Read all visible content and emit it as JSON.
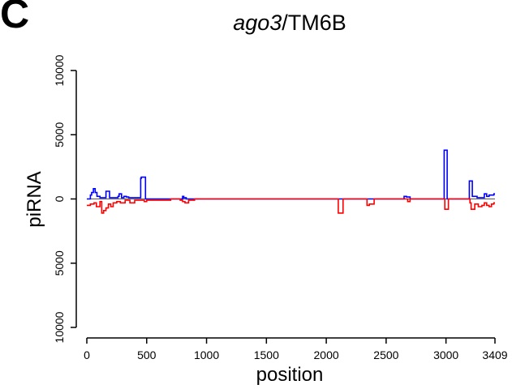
{
  "panel_letter": "C",
  "title_italic": "ago3",
  "title_rest": "/TM6B",
  "chart_data": {
    "type": "line",
    "title": "ago3/TM6B",
    "xlabel": "position",
    "ylabel": "piRNA",
    "xlim": [
      0,
      3409
    ],
    "ylim": [
      -10000,
      10000
    ],
    "x_ticks": [
      0,
      500,
      1000,
      1500,
      2000,
      2500,
      3000,
      3409
    ],
    "x_tick_labels": [
      "0",
      "500",
      "1000",
      "1500",
      "2000",
      "2500",
      "3000",
      "3409"
    ],
    "y_ticks": [
      10000,
      5000,
      0,
      -5000,
      -10000
    ],
    "y_tick_labels": [
      "10000",
      "5000",
      "0",
      "5000",
      "10000"
    ],
    "grid": false,
    "legend": "none",
    "series": [
      {
        "color": "#0000ff",
        "x": [
          0,
          30,
          40,
          55,
          70,
          85,
          110,
          150,
          160,
          175,
          190,
          220,
          260,
          270,
          290,
          310,
          330,
          350,
          380,
          420,
          450,
          455,
          480,
          490,
          520,
          600,
          700,
          780,
          800,
          810,
          830,
          900,
          1000,
          1200,
          1400,
          1600,
          1700,
          1900,
          2000,
          2100,
          2200,
          2300,
          2400,
          2500,
          2600,
          2650,
          2670,
          2700,
          2800,
          2900,
          2980,
          2985,
          3000,
          3010,
          3100,
          3190,
          3195,
          3215,
          3220,
          3260,
          3300,
          3320,
          3340,
          3360,
          3400,
          3409
        ],
        "y": [
          0,
          300,
          500,
          800,
          500,
          200,
          100,
          100,
          600,
          600,
          100,
          100,
          200,
          400,
          100,
          200,
          150,
          100,
          100,
          100,
          1600,
          1700,
          1700,
          0,
          0,
          0,
          0,
          0,
          200,
          100,
          0,
          0,
          0,
          0,
          0,
          0,
          0,
          0,
          0,
          0,
          0,
          0,
          0,
          0,
          0,
          200,
          150,
          0,
          0,
          0,
          0,
          3800,
          3800,
          0,
          0,
          0,
          1400,
          1400,
          200,
          100,
          100,
          400,
          200,
          300,
          400,
          400
        ]
      },
      {
        "color": "#ff0000",
        "x": [
          0,
          30,
          60,
          80,
          110,
          125,
          140,
          160,
          180,
          200,
          220,
          250,
          280,
          320,
          360,
          400,
          450,
          480,
          500,
          550,
          600,
          700,
          780,
          800,
          820,
          850,
          900,
          1000,
          1200,
          1400,
          1600,
          1700,
          1800,
          1900,
          2000,
          2100,
          2120,
          2140,
          2200,
          2300,
          2340,
          2360,
          2400,
          2500,
          2600,
          2680,
          2700,
          2800,
          2900,
          2990,
          3000,
          3020,
          3100,
          3200,
          3210,
          3240,
          3270,
          3300,
          3320,
          3340,
          3360,
          3380,
          3400,
          3409
        ],
        "y": [
          -500,
          -400,
          -300,
          -600,
          -200,
          -1100,
          -900,
          -700,
          -400,
          -600,
          -300,
          -200,
          -300,
          -100,
          -300,
          -100,
          -100,
          -200,
          -100,
          -100,
          -100,
          0,
          -100,
          -200,
          -300,
          -100,
          0,
          0,
          0,
          0,
          0,
          0,
          0,
          0,
          0,
          -1100,
          -1100,
          0,
          0,
          0,
          -500,
          -400,
          0,
          0,
          0,
          -200,
          0,
          0,
          0,
          -800,
          -800,
          0,
          0,
          -300,
          -800,
          -400,
          -600,
          -500,
          -300,
          -500,
          -600,
          -400,
          -300,
          -300
        ]
      }
    ]
  }
}
